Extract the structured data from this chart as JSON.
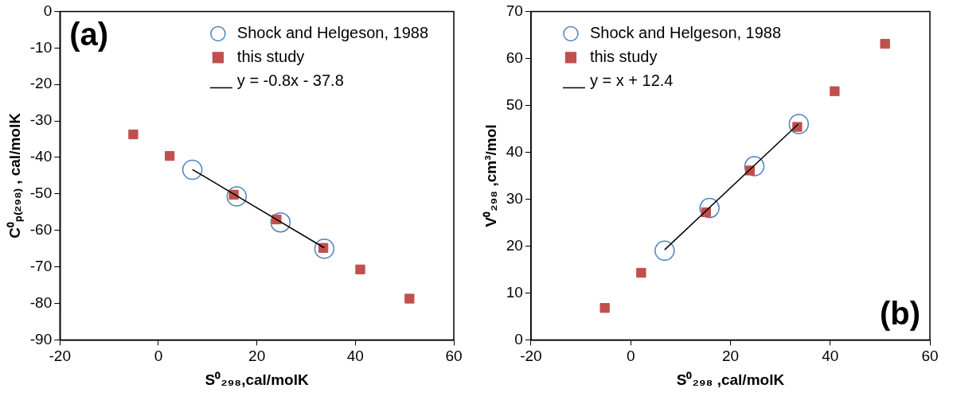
{
  "chart_data": [
    {
      "type": "scatter",
      "xlabel": "S⁰₂₉₈,cal/molK",
      "ylabel": "C⁰ₚ₍₂₉₈₎ , cal/molK",
      "xlim": [
        -20,
        60
      ],
      "xticks": [
        -20,
        0,
        20,
        40,
        60
      ],
      "ylim": [
        -90,
        0
      ],
      "yticks": [
        -90,
        -80,
        -70,
        -60,
        -50,
        -40,
        -30,
        -20,
        -10,
        0
      ],
      "grid": false,
      "legend": "top right",
      "annotations": [
        "(a)"
      ],
      "series": [
        {
          "name": "Shock and Helgeson, 1988",
          "type": "scatter",
          "marker": "circle",
          "color": "#4f81bd",
          "x": [
            6.9,
            15.9,
            24.8,
            33.7
          ],
          "values": [
            -43.4,
            -50.7,
            -57.8,
            -65.0
          ]
        },
        {
          "name": "this study",
          "type": "scatter",
          "marker": "square",
          "color": "#c0504d",
          "x": [
            -5.1,
            2.3,
            15.3,
            24.0,
            33.5,
            41.0,
            51.0
          ],
          "values": [
            -33.7,
            -39.6,
            -50.2,
            -57.0,
            -64.8,
            -70.7,
            -78.7
          ]
        },
        {
          "name": "y = -0.8x - 37.8",
          "type": "line",
          "marker": "none",
          "color": "#000000",
          "x": [
            6.9,
            33.7
          ],
          "values": [
            -43.3,
            -64.8
          ]
        }
      ]
    },
    {
      "type": "scatter",
      "xlabel": "S⁰₂₉₈ ,cal/molK",
      "ylabel": "V⁰₂₉₈ ,cm³/mol",
      "xlim": [
        -20,
        60
      ],
      "xticks": [
        -20,
        0,
        20,
        40,
        60
      ],
      "ylim": [
        0,
        70
      ],
      "yticks": [
        0,
        10,
        20,
        30,
        40,
        50,
        60,
        70
      ],
      "grid": false,
      "legend": "top left",
      "annotations": [
        "(b)"
      ],
      "series": [
        {
          "name": "Shock and Helgeson, 1988",
          "type": "scatter",
          "marker": "circle",
          "color": "#4f81bd",
          "x": [
            6.8,
            15.8,
            24.8,
            33.7
          ],
          "values": [
            19.0,
            28.1,
            37.0,
            46.0
          ]
        },
        {
          "name": "this study",
          "type": "scatter",
          "marker": "square",
          "color": "#c0504d",
          "x": [
            -5.2,
            2.1,
            15.1,
            23.9,
            33.4,
            40.9,
            51.0
          ],
          "values": [
            6.8,
            14.3,
            27.2,
            36.1,
            45.4,
            53.0,
            63.1
          ]
        },
        {
          "name": "y = x + 12.4",
          "type": "line",
          "marker": "none",
          "color": "#000000",
          "x": [
            6.8,
            33.6
          ],
          "values": [
            19.2,
            46.0
          ]
        }
      ]
    }
  ]
}
